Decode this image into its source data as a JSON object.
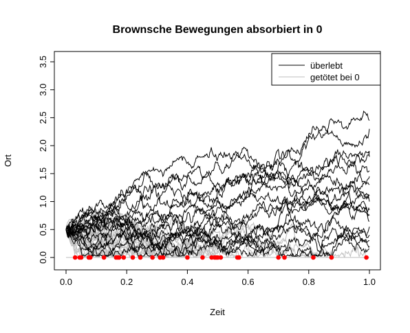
{
  "chart_data": {
    "type": "line",
    "title": "Brownsche Bewegungen absorbiert in 0",
    "xlabel": "Zeit",
    "ylabel": "Ort",
    "xlim": [
      0,
      1
    ],
    "ylim": [
      0,
      3.5
    ],
    "x_ticks": [
      "0.0",
      "0.2",
      "0.4",
      "0.6",
      "0.8",
      "1.0"
    ],
    "y_ticks": [
      "0.0",
      "0.5",
      "1.0",
      "1.5",
      "2.0",
      "2.5",
      "3.0",
      "3.5"
    ],
    "start_value": 0.5,
    "legend_position": "top-right",
    "grid": false,
    "series": [
      {
        "name": "überlebt",
        "color": "#000000",
        "end_values": [
          2.45,
          2.3,
          1.9,
          1.8,
          1.55,
          1.45,
          1.3,
          1.1,
          1.0,
          0.85,
          0.75,
          0.65,
          0.55,
          0.4,
          0.3,
          0.2,
          0.15
        ]
      },
      {
        "name": "getötet bei 0",
        "color": "#bebebe"
      }
    ],
    "absorption_times": [
      0.03,
      0.045,
      0.05,
      0.075,
      0.08,
      0.125,
      0.165,
      0.17,
      0.175,
      0.19,
      0.22,
      0.245,
      0.285,
      0.31,
      0.32,
      0.4,
      0.45,
      0.48,
      0.49,
      0.495,
      0.5,
      0.51,
      0.565,
      0.57,
      0.7,
      0.72,
      0.815,
      0.875,
      0.99
    ],
    "absorption_marker_color": "#ff0000"
  }
}
